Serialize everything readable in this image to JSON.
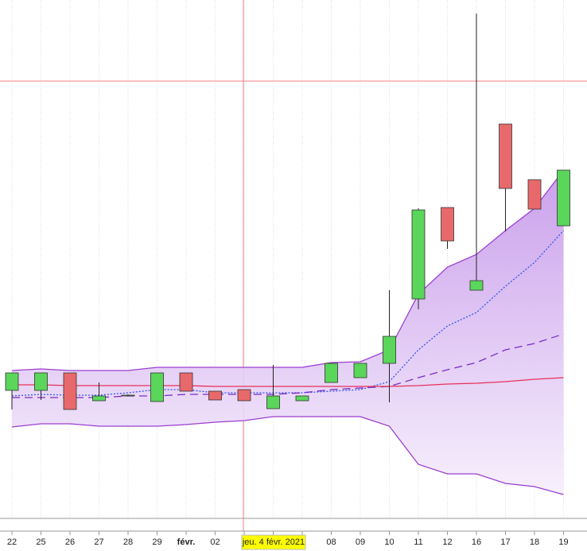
{
  "chart_data": {
    "type": "candlestick",
    "categories": [
      "22",
      "25",
      "26",
      "27",
      "28",
      "29",
      "févr.",
      "02",
      null,
      null,
      null,
      "08",
      "09",
      "10",
      "11",
      "12",
      "16",
      "17",
      "18",
      "19"
    ],
    "crosshair_label": "jeu. 4 févr. 2021",
    "ylim": [
      0,
      652
    ],
    "up_color": "#5ad65a",
    "down_color": "#e8696b",
    "open": [
      161,
      161,
      183,
      148,
      155,
      147,
      183,
      160,
      162,
      138,
      148,
      171,
      177,
      195,
      276,
      391,
      287,
      496,
      426,
      368
    ],
    "high": [
      183,
      183,
      183,
      171,
      156,
      183,
      183,
      160,
      162,
      193,
      154,
      195,
      195,
      287,
      390,
      391,
      635,
      496,
      426,
      438
    ],
    "low": [
      137,
      149,
      137,
      148,
      154,
      147,
      160,
      149,
      148,
      138,
      148,
      171,
      177,
      146,
      263,
      339,
      287,
      361,
      389,
      368
    ],
    "close": [
      183,
      183,
      137,
      154,
      155,
      183,
      160,
      149,
      148,
      154,
      154,
      195,
      195,
      229,
      388,
      349,
      299,
      415,
      389,
      438
    ],
    "band": {
      "color": "#9b3fd0",
      "upper": [
        186,
        188,
        186,
        186,
        186,
        190,
        190,
        190,
        190,
        190,
        190,
        196,
        197,
        212,
        282,
        316,
        332,
        362,
        390,
        438
      ],
      "lower": [
        115,
        119,
        119,
        116,
        116,
        116,
        118,
        121,
        123,
        128,
        128,
        128,
        128,
        116,
        68,
        56,
        56,
        44,
        40,
        30
      ]
    },
    "overlays": [
      {
        "color": "#3355ee",
        "dash": "dotted",
        "values": [
          154,
          156,
          155,
          155,
          158,
          162,
          162,
          158,
          158,
          158,
          158,
          160,
          162,
          172,
          212,
          242,
          259,
          292,
          322,
          362
        ]
      },
      {
        "color": "#7a2bc4",
        "dash": "dashed",
        "values": [
          152,
          152,
          152,
          152,
          154,
          154,
          156,
          156,
          156,
          156,
          158,
          162,
          164,
          166,
          177,
          187,
          196,
          212,
          220,
          232
        ]
      },
      {
        "color": "#e8305a",
        "dash": "solid",
        "values": [
          168,
          168,
          167,
          167,
          167,
          167,
          167,
          166,
          166,
          166,
          166,
          166,
          166,
          166,
          167,
          169,
          170,
          172,
          175,
          177
        ]
      }
    ]
  }
}
